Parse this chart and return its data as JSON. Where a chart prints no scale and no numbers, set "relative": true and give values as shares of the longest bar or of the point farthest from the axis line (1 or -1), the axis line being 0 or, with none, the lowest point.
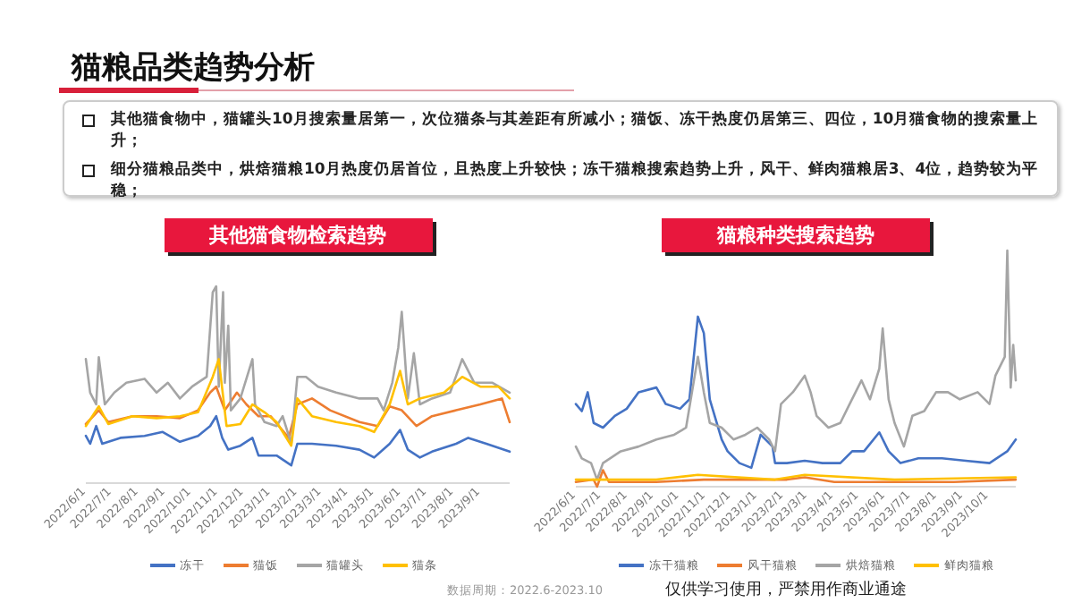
{
  "chart_data": [
    {
      "type": "other",
      "title": "猫粮品类趋势分析",
      "annotations": [
        "其他猫食物中，猫罐头10月搜索量居第一，次位猫条与其差距有所减小；猫饭、冻干热度仍居第三、四位，10月猫食物的搜索量上升；",
        "细分猫粮品类中，烘焙猫粮10月热度仍居首位，且热度上升较快；冻干猫粮搜索趋势上升，风干、鲜肉猫粮居3、4位，趋势较为平稳；"
      ]
    },
    {
      "type": "line",
      "title": "其他猫食物检索趋势",
      "relative": true,
      "legend": "bottom",
      "tick_labels": "x",
      "xlim": [
        "2022-06-01",
        "2023-10-05"
      ],
      "xticks": [
        {
          "value": "2022-06-01",
          "label": "2022/6/1"
        },
        {
          "value": "2022-07-01",
          "label": "2022/7/1"
        },
        {
          "value": "2022-08-01",
          "label": "2022/8/1"
        },
        {
          "value": "2022-09-01",
          "label": "2022/9/1"
        },
        {
          "value": "2022-10-01",
          "label": "2022/10/1"
        },
        {
          "value": "2022-11-01",
          "label": "2022/11/1"
        },
        {
          "value": "2022-12-01",
          "label": "2022/12/1"
        },
        {
          "value": "2023-01-01",
          "label": "2023/1/1"
        },
        {
          "value": "2023-02-01",
          "label": "2023/2/1"
        },
        {
          "value": "2023-03-01",
          "label": "2023/3/1"
        },
        {
          "value": "2023-04-01",
          "label": "2023/4/1"
        },
        {
          "value": "2023-05-01",
          "label": "2023/5/1"
        },
        {
          "value": "2023-06-01",
          "label": "2023/6/1"
        },
        {
          "value": "2023-07-01",
          "label": "2023/7/1"
        },
        {
          "value": "2023-08-01",
          "label": "2023/8/1"
        },
        {
          "value": "2023-09-01",
          "label": "2023/9/1"
        }
      ],
      "series": [
        {
          "name": "冻干",
          "color": "#4472c4",
          "x": [
            "2022-06-01",
            "2022-06-06",
            "2022-06-13",
            "2022-06-20",
            "2022-07-11",
            "2022-08-08",
            "2022-08-29",
            "2022-09-18",
            "2022-10-09",
            "2022-10-23",
            "2022-10-30",
            "2022-11-06",
            "2022-11-13",
            "2022-11-27",
            "2022-12-11",
            "2022-12-18",
            "2023-01-08",
            "2023-01-25",
            "2023-02-01",
            "2023-02-18",
            "2023-03-18",
            "2023-04-14",
            "2023-05-01",
            "2023-05-19",
            "2023-05-31",
            "2023-06-09",
            "2023-06-23",
            "2023-07-07",
            "2023-08-04",
            "2023-08-18",
            "2023-09-08",
            "2023-10-05"
          ],
          "values": [
            0.24,
            0.2,
            0.29,
            0.2,
            0.23,
            0.24,
            0.26,
            0.21,
            0.24,
            0.29,
            0.34,
            0.23,
            0.17,
            0.19,
            0.23,
            0.14,
            0.14,
            0.09,
            0.2,
            0.2,
            0.19,
            0.17,
            0.13,
            0.2,
            0.27,
            0.17,
            0.13,
            0.16,
            0.2,
            0.23,
            0.2,
            0.16
          ]
        },
        {
          "name": "猫饭",
          "color": "#ed7d31",
          "x": [
            "2022-06-01",
            "2022-06-16",
            "2022-06-27",
            "2022-07-25",
            "2022-08-22",
            "2022-09-18",
            "2022-10-09",
            "2022-10-23",
            "2022-10-30",
            "2022-11-09",
            "2022-11-23",
            "2022-12-04",
            "2022-12-18",
            "2023-01-01",
            "2023-01-22",
            "2023-02-01",
            "2023-02-18",
            "2023-03-11",
            "2023-04-14",
            "2023-05-05",
            "2023-05-19",
            "2023-06-02",
            "2023-06-19",
            "2023-07-07",
            "2023-08-04",
            "2023-09-01",
            "2023-09-26",
            "2023-10-05"
          ],
          "values": [
            0.3,
            0.37,
            0.31,
            0.34,
            0.34,
            0.33,
            0.37,
            0.46,
            0.49,
            0.37,
            0.46,
            0.4,
            0.34,
            0.34,
            0.23,
            0.4,
            0.43,
            0.37,
            0.31,
            0.29,
            0.39,
            0.37,
            0.29,
            0.34,
            0.37,
            0.4,
            0.43,
            0.31
          ]
        },
        {
          "name": "猫罐头",
          "color": "#a5a5a5",
          "x": [
            "2022-06-01",
            "2022-06-06",
            "2022-06-13",
            "2022-06-16",
            "2022-06-23",
            "2022-07-04",
            "2022-07-18",
            "2022-08-08",
            "2022-08-22",
            "2022-09-04",
            "2022-09-18",
            "2022-10-02",
            "2022-10-19",
            "2022-10-26",
            "2022-10-30",
            "2022-11-02",
            "2022-11-07",
            "2022-11-09",
            "2022-11-13",
            "2022-11-16",
            "2022-11-27",
            "2022-12-11",
            "2022-12-14",
            "2022-12-25",
            "2023-01-08",
            "2023-01-15",
            "2023-01-25",
            "2023-02-01",
            "2023-02-11",
            "2023-02-25",
            "2023-03-18",
            "2023-04-14",
            "2023-05-05",
            "2023-05-12",
            "2023-05-22",
            "2023-05-29",
            "2023-06-02",
            "2023-06-09",
            "2023-06-16",
            "2023-06-23",
            "2023-07-07",
            "2023-07-28",
            "2023-08-11",
            "2023-08-25",
            "2023-09-15",
            "2023-10-05"
          ],
          "values": [
            0.63,
            0.46,
            0.4,
            0.64,
            0.4,
            0.46,
            0.51,
            0.53,
            0.46,
            0.51,
            0.43,
            0.49,
            0.54,
            0.97,
            1.0,
            0.49,
            0.97,
            0.51,
            0.8,
            0.37,
            0.43,
            0.63,
            0.4,
            0.31,
            0.29,
            0.34,
            0.2,
            0.54,
            0.54,
            0.49,
            0.46,
            0.43,
            0.43,
            0.37,
            0.51,
            0.69,
            0.87,
            0.43,
            0.66,
            0.4,
            0.43,
            0.46,
            0.63,
            0.51,
            0.51,
            0.46
          ]
        },
        {
          "name": "猫条",
          "color": "#ffc000",
          "x": [
            "2022-06-01",
            "2022-06-16",
            "2022-06-27",
            "2022-07-25",
            "2022-08-22",
            "2022-09-18",
            "2022-10-09",
            "2022-10-26",
            "2022-11-02",
            "2022-11-11",
            "2022-11-27",
            "2022-12-11",
            "2022-12-25",
            "2023-01-08",
            "2023-01-25",
            "2023-02-01",
            "2023-02-18",
            "2023-03-18",
            "2023-04-14",
            "2023-05-01",
            "2023-05-19",
            "2023-05-31",
            "2023-06-09",
            "2023-06-23",
            "2023-07-21",
            "2023-08-11",
            "2023-09-01",
            "2023-09-22",
            "2023-10-05"
          ],
          "values": [
            0.29,
            0.39,
            0.3,
            0.34,
            0.33,
            0.34,
            0.36,
            0.54,
            0.63,
            0.29,
            0.3,
            0.4,
            0.36,
            0.31,
            0.19,
            0.43,
            0.34,
            0.31,
            0.29,
            0.26,
            0.4,
            0.57,
            0.4,
            0.43,
            0.46,
            0.54,
            0.49,
            0.49,
            0.43
          ]
        }
      ]
    },
    {
      "type": "line",
      "title": "猫粮种类搜索趋势",
      "relative": true,
      "legend": "bottom",
      "tick_labels": "x",
      "xlim": [
        "2022-06-01",
        "2023-11-02"
      ],
      "xticks": [
        {
          "value": "2022-06-01",
          "label": "2022/6/1"
        },
        {
          "value": "2022-07-01",
          "label": "2022/7/1"
        },
        {
          "value": "2022-08-01",
          "label": "2022/8/1"
        },
        {
          "value": "2022-09-01",
          "label": "2022/9/1"
        },
        {
          "value": "2022-10-01",
          "label": "2022/10/1"
        },
        {
          "value": "2022-11-01",
          "label": "2022/11/1"
        },
        {
          "value": "2022-12-01",
          "label": "2022/12/1"
        },
        {
          "value": "2023-01-01",
          "label": "2023/1/1"
        },
        {
          "value": "2023-02-01",
          "label": "2023/2/1"
        },
        {
          "value": "2023-03-01",
          "label": "2023/3/1"
        },
        {
          "value": "2023-04-01",
          "label": "2023/4/1"
        },
        {
          "value": "2023-05-01",
          "label": "2023/5/1"
        },
        {
          "value": "2023-06-01",
          "label": "2023/6/1"
        },
        {
          "value": "2023-07-01",
          "label": "2023/7/1"
        },
        {
          "value": "2023-08-01",
          "label": "2023/8/1"
        },
        {
          "value": "2023-09-01",
          "label": "2023/9/1"
        },
        {
          "value": "2023-10-01",
          "label": "2023/10/1"
        }
      ],
      "annotations": [
        "数据周期：2022.6-2023.10",
        "仅供学习使用，严禁用作商业通途"
      ],
      "series": [
        {
          "name": "冻干猫粮",
          "color": "#4472c4",
          "x": [
            "2022-06-01",
            "2022-06-08",
            "2022-06-15",
            "2022-06-22",
            "2022-07-03",
            "2022-07-17",
            "2022-07-31",
            "2022-08-14",
            "2022-09-04",
            "2022-09-15",
            "2022-10-02",
            "2022-10-13",
            "2022-10-23",
            "2022-10-30",
            "2022-11-06",
            "2022-11-20",
            "2022-11-27",
            "2022-12-11",
            "2022-12-25",
            "2023-01-05",
            "2023-01-19",
            "2023-01-22",
            "2023-02-05",
            "2023-02-26",
            "2023-03-19",
            "2023-04-09",
            "2023-04-23",
            "2023-05-07",
            "2023-05-25",
            "2023-06-05",
            "2023-06-19",
            "2023-07-10",
            "2023-08-07",
            "2023-09-04",
            "2023-10-02",
            "2023-10-23",
            "2023-11-02"
          ],
          "values": [
            0.35,
            0.32,
            0.4,
            0.27,
            0.25,
            0.3,
            0.33,
            0.4,
            0.42,
            0.35,
            0.33,
            0.37,
            0.72,
            0.65,
            0.37,
            0.2,
            0.15,
            0.1,
            0.08,
            0.22,
            0.17,
            0.1,
            0.1,
            0.11,
            0.1,
            0.1,
            0.15,
            0.15,
            0.23,
            0.15,
            0.1,
            0.12,
            0.12,
            0.11,
            0.1,
            0.15,
            0.2
          ]
        },
        {
          "name": "风干猫粮",
          "color": "#ed7d31",
          "x": [
            "2022-06-01",
            "2022-06-22",
            "2022-06-26",
            "2022-07-03",
            "2022-07-10",
            "2022-09-04",
            "2022-10-30",
            "2023-02-05",
            "2023-02-26",
            "2023-04-02",
            "2023-06-12",
            "2023-08-21",
            "2023-11-02"
          ],
          "values": [
            0.02,
            0.03,
            0.0,
            0.07,
            0.02,
            0.02,
            0.03,
            0.03,
            0.04,
            0.02,
            0.02,
            0.02,
            0.03
          ]
        },
        {
          "name": "烘焙猫粮",
          "color": "#a5a5a5",
          "x": [
            "2022-06-01",
            "2022-06-08",
            "2022-06-19",
            "2022-06-26",
            "2022-07-03",
            "2022-07-24",
            "2022-08-14",
            "2022-09-04",
            "2022-09-25",
            "2022-10-09",
            "2022-10-16",
            "2022-10-23",
            "2022-10-30",
            "2022-11-06",
            "2022-11-20",
            "2022-12-04",
            "2022-12-18",
            "2023-01-01",
            "2023-01-15",
            "2023-01-22",
            "2023-01-29",
            "2023-02-12",
            "2023-02-26",
            "2023-03-05",
            "2023-03-12",
            "2023-03-26",
            "2023-04-09",
            "2023-04-20",
            "2023-05-04",
            "2023-05-14",
            "2023-05-25",
            "2023-05-29",
            "2023-06-05",
            "2023-06-12",
            "2023-06-23",
            "2023-07-03",
            "2023-07-17",
            "2023-07-31",
            "2023-08-14",
            "2023-08-28",
            "2023-09-18",
            "2023-10-02",
            "2023-10-09",
            "2023-10-20",
            "2023-10-23",
            "2023-10-27",
            "2023-10-30",
            "2023-11-02"
          ],
          "values": [
            0.17,
            0.12,
            0.1,
            0.03,
            0.1,
            0.15,
            0.17,
            0.2,
            0.22,
            0.25,
            0.4,
            0.55,
            0.4,
            0.27,
            0.25,
            0.2,
            0.22,
            0.25,
            0.2,
            0.15,
            0.35,
            0.4,
            0.47,
            0.4,
            0.3,
            0.25,
            0.27,
            0.35,
            0.45,
            0.37,
            0.5,
            0.67,
            0.37,
            0.27,
            0.17,
            0.3,
            0.32,
            0.4,
            0.4,
            0.37,
            0.4,
            0.35,
            0.47,
            0.55,
            1.0,
            0.42,
            0.6,
            0.45
          ]
        },
        {
          "name": "鲜肉猫粮",
          "color": "#ffc000",
          "x": [
            "2022-06-01",
            "2022-09-04",
            "2022-10-23",
            "2023-01-22",
            "2023-02-26",
            "2023-06-12",
            "2023-11-02"
          ],
          "values": [
            0.03,
            0.03,
            0.05,
            0.03,
            0.05,
            0.03,
            0.04
          ]
        }
      ]
    }
  ]
}
